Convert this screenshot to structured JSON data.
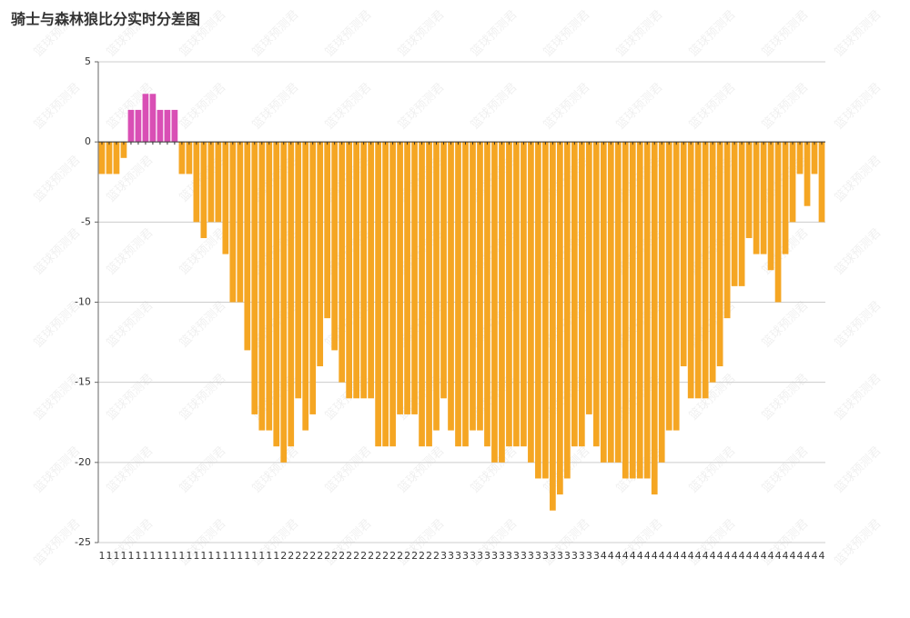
{
  "chart_data": {
    "type": "bar",
    "title": "骑士与森林狼比分实时分差图",
    "watermark": "篮球预测君",
    "categories": [
      "1",
      "1",
      "1",
      "1",
      "1",
      "1",
      "1",
      "1",
      "1",
      "1",
      "1",
      "1",
      "1",
      "1",
      "1",
      "1",
      "1",
      "1",
      "1",
      "1",
      "1",
      "1",
      "1",
      "1",
      "1",
      "2",
      "2",
      "2",
      "2",
      "2",
      "2",
      "2",
      "2",
      "2",
      "2",
      "2",
      "2",
      "2",
      "2",
      "2",
      "2",
      "2",
      "2",
      "2",
      "2",
      "2",
      "2",
      "3",
      "3",
      "3",
      "3",
      "3",
      "3",
      "3",
      "3",
      "3",
      "3",
      "3",
      "3",
      "3",
      "3",
      "3",
      "3",
      "3",
      "3",
      "3",
      "3",
      "3",
      "3",
      "4",
      "4",
      "4",
      "4",
      "4",
      "4",
      "4",
      "4",
      "4",
      "4",
      "4",
      "4",
      "4",
      "4",
      "4",
      "4",
      "4",
      "4",
      "4",
      "4",
      "4",
      "4",
      "4",
      "4",
      "4",
      "4",
      "4",
      "4",
      "4",
      "4",
      "4"
    ],
    "values": [
      -2,
      -2,
      -2,
      -1,
      2,
      2,
      3,
      3,
      2,
      2,
      2,
      -2,
      -2,
      -5,
      -6,
      -5,
      -5,
      -7,
      -10,
      -10,
      -13,
      -17,
      -18,
      -18,
      -19,
      -20,
      -19,
      -16,
      -18,
      -17,
      -14,
      -11,
      -13,
      -15,
      -16,
      -16,
      -16,
      -16,
      -19,
      -19,
      -19,
      -17,
      -17,
      -17,
      -19,
      -19,
      -18,
      -16,
      -18,
      -19,
      -19,
      -18,
      -18,
      -19,
      -20,
      -20,
      -19,
      -19,
      -19,
      -20,
      -21,
      -21,
      -23,
      -22,
      -21,
      -19,
      -19,
      -17,
      -19,
      -20,
      -20,
      -20,
      -21,
      -21,
      -21,
      -21,
      -22,
      -20,
      -18,
      -18,
      -14,
      -16,
      -16,
      -16,
      -15,
      -14,
      -11,
      -9,
      -9,
      -6,
      -7,
      -7,
      -8,
      -10,
      -7,
      -5,
      -2,
      -4,
      -2,
      -5
    ],
    "positive_color": "#d94fb5",
    "negative_color": "#f5a623",
    "ylim": [
      -25,
      5
    ],
    "yticks": [
      -25,
      -20,
      -15,
      -10,
      -5,
      0,
      5
    ],
    "grid": true
  }
}
